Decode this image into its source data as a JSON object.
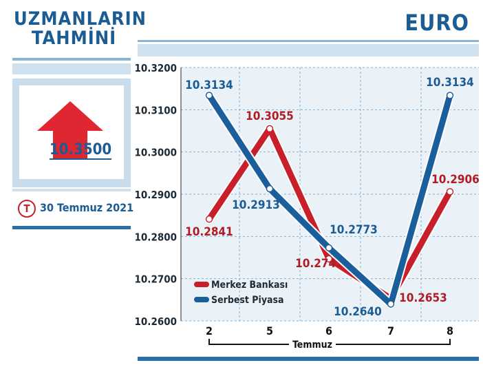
{
  "header": {
    "left_title_line1": "UZMANLARIN",
    "left_title_line2": "TAHMİNİ",
    "right_title": "EURO"
  },
  "forecast": {
    "value": "10.3500",
    "date": "30 Temmuz 2021",
    "date_icon_letter": "T",
    "arrow_color": "#e02630"
  },
  "colors": {
    "merkez": "#c8202a",
    "serbest": "#1a5e9c",
    "brand_blue": "#1c5c94",
    "grid": "#7fb0d6",
    "plot_bg": "#eaf2f8"
  },
  "chart_data": {
    "type": "line",
    "categories": [
      "2",
      "5",
      "6",
      "7",
      "8"
    ],
    "xlabel": "Temmuz",
    "ylim": [
      10.26,
      10.32
    ],
    "yticks": [
      "10.3200",
      "10.3100",
      "10.3000",
      "10.2900",
      "10.2800",
      "10.2700",
      "10.2600"
    ],
    "series": [
      {
        "name": "Merkez Bankası",
        "color": "#c8202a",
        "values": [
          10.2841,
          10.3055,
          10.2747,
          10.2653,
          10.2906
        ],
        "labels": [
          "10.2841",
          "10.3055",
          "10.2747",
          "10.2653",
          "10.2906"
        ]
      },
      {
        "name": "Serbest Piyasa",
        "color": "#1a5e9c",
        "values": [
          10.3134,
          10.2913,
          10.2773,
          10.264,
          10.3134
        ],
        "labels": [
          "10.3134",
          "10.2913",
          "10.2773",
          "10.2640",
          "10.3134"
        ]
      }
    ],
    "grid": true,
    "legend_position": "bottom-left"
  }
}
